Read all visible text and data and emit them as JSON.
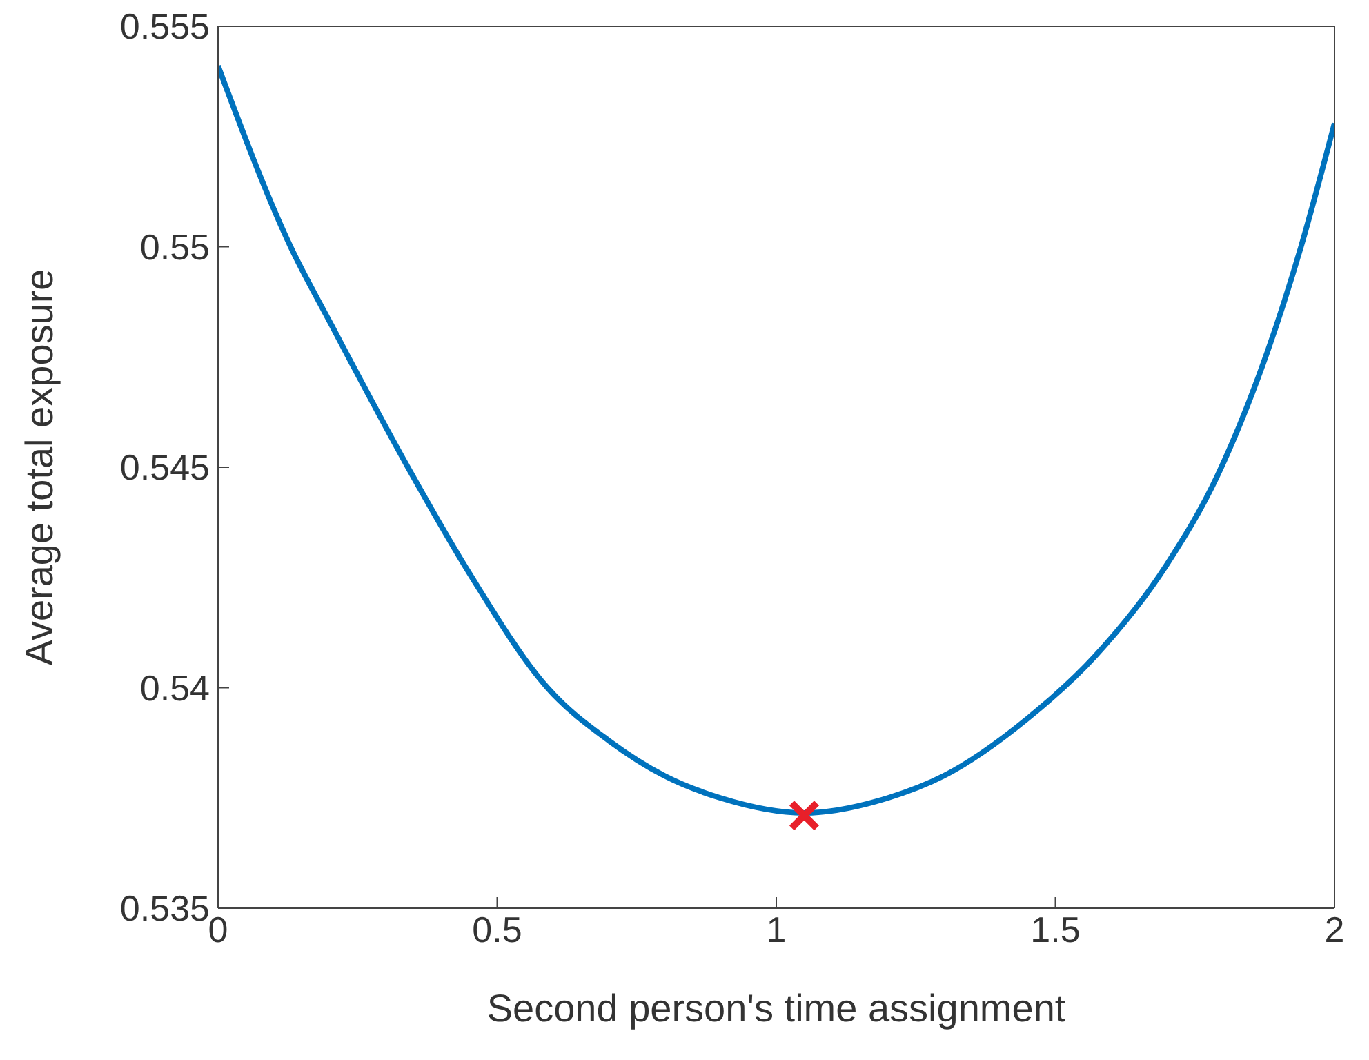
{
  "chart_data": {
    "type": "line",
    "xlabel": "Second person's time assignment",
    "ylabel": "Average total exposure",
    "xlim": [
      0,
      2
    ],
    "xticks": [
      0,
      0.5,
      1,
      1.5,
      2
    ],
    "ylim": [
      0.535,
      0.555
    ],
    "yticks": [
      0.535,
      0.54,
      0.545,
      0.55,
      0.555
    ],
    "series": [
      {
        "color": "#0072bd",
        "marker": "none",
        "x": [
          0,
          0.13,
          0.2,
          0.34,
          0.45,
          0.59,
          0.7,
          0.8,
          0.9,
          1.05,
          1.2,
          1.3,
          1.45,
          1.57,
          1.7,
          1.79,
          1.94,
          2
        ],
        "values": [
          0.5541,
          0.55,
          0.5483,
          0.545,
          0.5426,
          0.54,
          0.5388,
          0.538,
          0.5375,
          0.53716,
          0.5375,
          0.538,
          0.5393,
          0.5407,
          0.5428,
          0.5448,
          0.55,
          0.5528
        ]
      },
      {
        "type": "scatter",
        "color": "#e8202a",
        "marker": "cross",
        "x": [
          1.05
        ],
        "values": [
          0.5371
        ]
      }
    ]
  }
}
